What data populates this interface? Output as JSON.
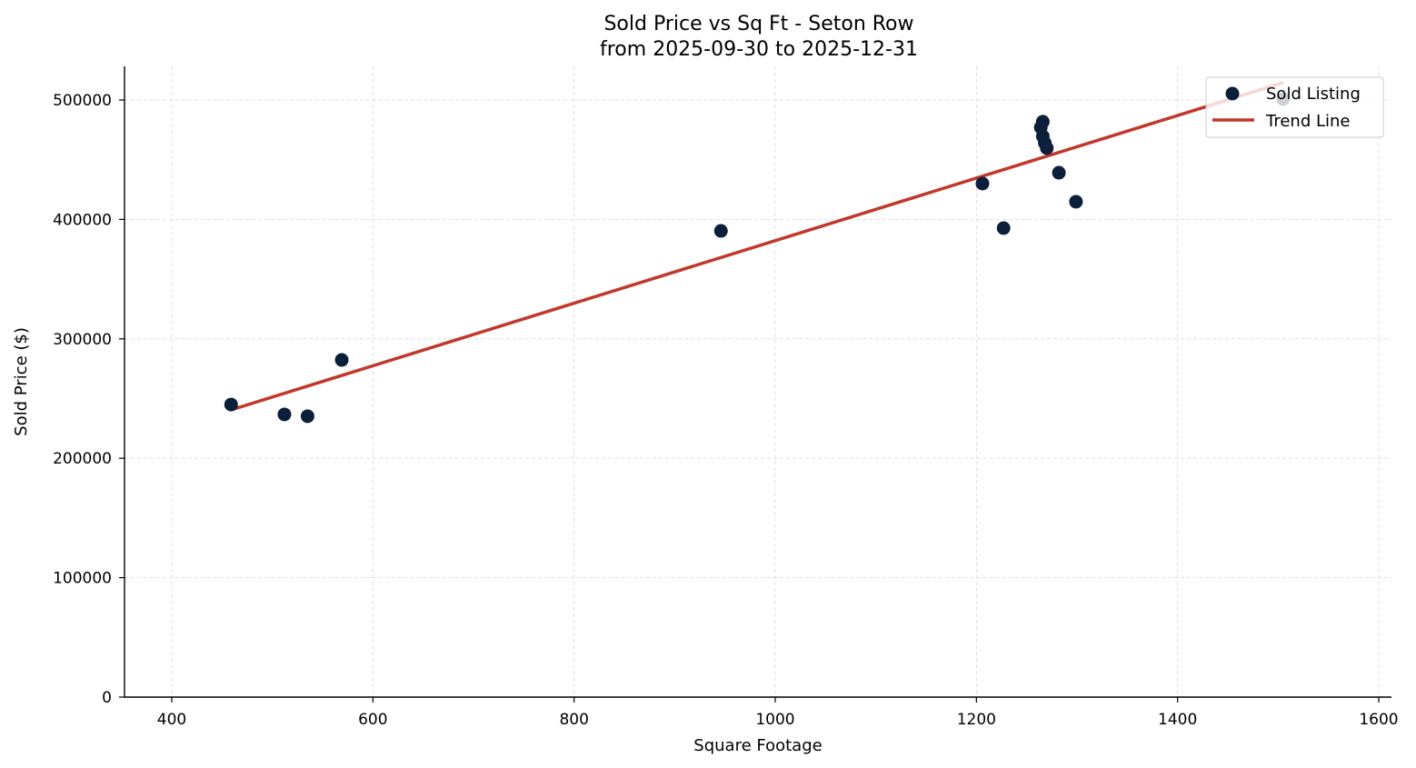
{
  "chart_data": {
    "type": "scatter",
    "title": "Sold Price vs Sq Ft - Seton Row",
    "subtitle": "from 2025-09-30 to 2025-12-31",
    "xlabel": "Square Footage",
    "ylabel": "Sold Price ($)",
    "xlim": [
      350,
      1610
    ],
    "ylim": [
      0,
      528000
    ],
    "xticks": [
      400,
      600,
      800,
      1000,
      1200,
      1400,
      1600
    ],
    "yticks": [
      0,
      100000,
      200000,
      300000,
      400000,
      500000
    ],
    "grid": true,
    "legend_position": "upper right",
    "series": [
      {
        "name": "Sold Listing",
        "kind": "scatter",
        "color": "#0b1f3a",
        "points": [
          {
            "x": 459,
            "y": 245000
          },
          {
            "x": 512,
            "y": 236700
          },
          {
            "x": 535,
            "y": 235200
          },
          {
            "x": 569,
            "y": 282300
          },
          {
            "x": 946,
            "y": 390400
          },
          {
            "x": 1206,
            "y": 430000
          },
          {
            "x": 1227,
            "y": 392700
          },
          {
            "x": 1264,
            "y": 477000
          },
          {
            "x": 1266,
            "y": 481800
          },
          {
            "x": 1266,
            "y": 469600
          },
          {
            "x": 1268,
            "y": 464000
          },
          {
            "x": 1270,
            "y": 459700
          },
          {
            "x": 1282,
            "y": 439100
          },
          {
            "x": 1299,
            "y": 414800
          },
          {
            "x": 1505,
            "y": 500800
          }
        ]
      },
      {
        "name": "Trend Line",
        "kind": "line",
        "color": "#c0392b",
        "points": [
          {
            "x": 459,
            "y": 240500
          },
          {
            "x": 1505,
            "y": 514500
          }
        ]
      }
    ]
  }
}
